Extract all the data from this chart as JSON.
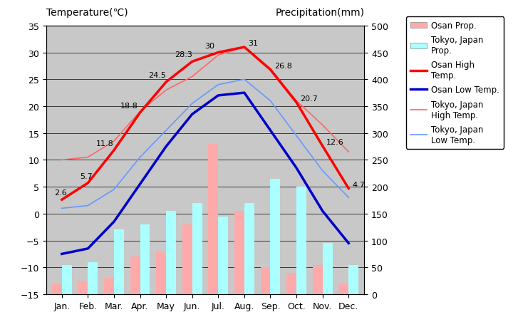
{
  "months": [
    "Jan.",
    "Feb.",
    "Mar.",
    "Apr.",
    "May",
    "Jun.",
    "Jul.",
    "Aug.",
    "Sep.",
    "Oct.",
    "Nov.",
    "Dec."
  ],
  "osan_high_temp": [
    2.6,
    5.7,
    11.8,
    18.8,
    24.5,
    28.3,
    30,
    31,
    26.8,
    20.7,
    12.6,
    4.7
  ],
  "osan_low_temp": [
    -7.5,
    -6.5,
    -1.5,
    5.5,
    12.5,
    18.5,
    22.0,
    22.5,
    15.5,
    8.5,
    0.5,
    -5.5
  ],
  "tokyo_high_temp": [
    10.0,
    10.5,
    13.5,
    19.0,
    23.0,
    25.5,
    29.5,
    31.0,
    27.0,
    21.0,
    16.5,
    11.5
  ],
  "tokyo_low_temp": [
    1.0,
    1.5,
    4.5,
    10.5,
    15.5,
    20.5,
    24.0,
    25.0,
    21.0,
    14.5,
    8.0,
    3.0
  ],
  "osan_precip": [
    20,
    25,
    30,
    70,
    80,
    130,
    280,
    155,
    50,
    40,
    55,
    20
  ],
  "tokyo_precip": [
    55,
    60,
    120,
    130,
    155,
    170,
    145,
    170,
    215,
    200,
    95,
    55
  ],
  "temp_ylim": [
    -15,
    35
  ],
  "precip_ylim": [
    0,
    500
  ],
  "temp_yticks": [
    -15,
    -10,
    -5,
    0,
    5,
    10,
    15,
    20,
    25,
    30,
    35
  ],
  "precip_yticks": [
    0,
    50,
    100,
    150,
    200,
    250,
    300,
    350,
    400,
    450,
    500
  ],
  "bg_color": "#c8c8c8",
  "osan_high_color": "#ff0000",
  "osan_low_color": "#0000cc",
  "tokyo_high_color": "#ff6666",
  "tokyo_low_color": "#6699ff",
  "osan_precip_color": "#ffaaaa",
  "tokyo_precip_color": "#aaffff",
  "title_left": "Temperature(℃)",
  "title_right": "Precipitation(mm)"
}
